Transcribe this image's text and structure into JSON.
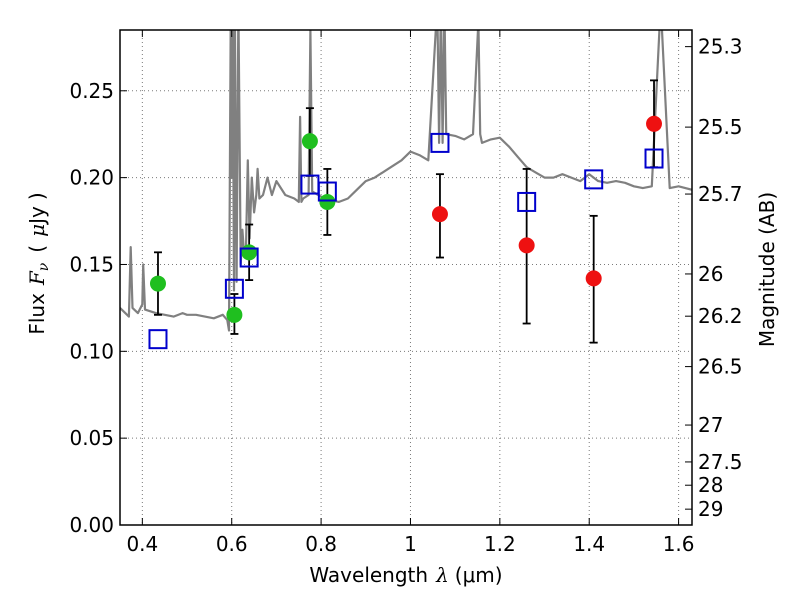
{
  "chart_data": {
    "type": "scatter",
    "xlabel": {
      "prefix": "Wavelength",
      "symbol": "λ",
      "unit": "(μm)"
    },
    "ylabel": {
      "prefix": "Flux",
      "symbol": "F",
      "sub": "ν",
      "unit_open": "(",
      "unit_mu": "μ",
      "unit_rest": "Jy",
      "unit_close": ")"
    },
    "y2label": "Magnitude (AB)",
    "xlim": [
      0.35,
      1.63
    ],
    "ylim": [
      0.0,
      0.285
    ],
    "xticks": [
      0.4,
      0.6,
      0.8,
      1.0,
      1.2,
      1.4,
      1.6
    ],
    "xtick_labels": [
      "0.4",
      "0.6",
      "0.8",
      "1",
      "1.2",
      "1.4",
      "1.6"
    ],
    "yticks": [
      0.0,
      0.05,
      0.1,
      0.15,
      0.2,
      0.25
    ],
    "ytick_labels": [
      "0.00",
      "0.05",
      "0.10",
      "0.15",
      "0.20",
      "0.25"
    ],
    "magnitude_ticks": [
      "25.3",
      "25.5",
      "25.7",
      "26",
      "26.2",
      "26.5",
      "27",
      "27.5",
      "28",
      "29"
    ],
    "grid": true,
    "colors": {
      "spectrum": "#808080",
      "green": "#1fbf1f",
      "red": "#ee1111",
      "model": "#0000cc",
      "errorbar": "#000000",
      "grid": "#7a7a7a"
    },
    "series": [
      {
        "marker": "circle",
        "color": "green",
        "points": [
          {
            "x": 0.435,
            "y": 0.139,
            "lo": 0.121,
            "hi": 0.157
          },
          {
            "x": 0.606,
            "y": 0.121,
            "lo": 0.11,
            "hi": 0.133
          },
          {
            "x": 0.639,
            "y": 0.157,
            "lo": 0.141,
            "hi": 0.173
          },
          {
            "x": 0.775,
            "y": 0.221,
            "lo": 0.201,
            "hi": 0.24
          },
          {
            "x": 0.814,
            "y": 0.186,
            "lo": 0.167,
            "hi": 0.205
          }
        ]
      },
      {
        "marker": "circle",
        "color": "red",
        "points": [
          {
            "x": 1.066,
            "y": 0.179,
            "lo": 0.154,
            "hi": 0.202
          },
          {
            "x": 1.26,
            "y": 0.161,
            "lo": 0.116,
            "hi": 0.205
          },
          {
            "x": 1.41,
            "y": 0.142,
            "lo": 0.105,
            "hi": 0.178
          },
          {
            "x": 1.545,
            "y": 0.231,
            "lo": 0.206,
            "hi": 0.256
          }
        ]
      },
      {
        "marker": "square",
        "color": "model",
        "points": [
          {
            "x": 0.435,
            "y": 0.107
          },
          {
            "x": 0.606,
            "y": 0.136
          },
          {
            "x": 0.639,
            "y": 0.154
          },
          {
            "x": 0.775,
            "y": 0.196
          },
          {
            "x": 0.814,
            "y": 0.192
          },
          {
            "x": 1.066,
            "y": 0.22
          },
          {
            "x": 1.26,
            "y": 0.186
          },
          {
            "x": 1.41,
            "y": 0.199
          },
          {
            "x": 1.545,
            "y": 0.211
          }
        ]
      }
    ],
    "spectrum": {
      "x": [
        0.35,
        0.37,
        0.374,
        0.378,
        0.39,
        0.4,
        0.402,
        0.406,
        0.43,
        0.45,
        0.47,
        0.49,
        0.5,
        0.52,
        0.54,
        0.56,
        0.58,
        0.59,
        0.594,
        0.598,
        0.6,
        0.602,
        0.605,
        0.607,
        0.611,
        0.615,
        0.62,
        0.624,
        0.628,
        0.632,
        0.636,
        0.64,
        0.645,
        0.65,
        0.655,
        0.658,
        0.662,
        0.67,
        0.68,
        0.69,
        0.7,
        0.72,
        0.74,
        0.75,
        0.753,
        0.756,
        0.76,
        0.772,
        0.776,
        0.78,
        0.8,
        0.82,
        0.84,
        0.86,
        0.88,
        0.9,
        0.92,
        0.95,
        0.98,
        1.0,
        1.02,
        1.04,
        1.06,
        1.064,
        1.068,
        1.072,
        1.076,
        1.08,
        1.1,
        1.12,
        1.14,
        1.152,
        1.156,
        1.16,
        1.18,
        1.2,
        1.22,
        1.24,
        1.26,
        1.28,
        1.3,
        1.32,
        1.34,
        1.36,
        1.38,
        1.4,
        1.42,
        1.44,
        1.46,
        1.48,
        1.5,
        1.52,
        1.54,
        1.56,
        1.58,
        1.6,
        1.63
      ],
      "y": [
        0.125,
        0.12,
        0.16,
        0.125,
        0.122,
        0.127,
        0.15,
        0.124,
        0.122,
        0.121,
        0.12,
        0.122,
        0.121,
        0.121,
        0.12,
        0.119,
        0.121,
        0.118,
        0.112,
        0.3,
        0.2,
        0.3,
        0.135,
        0.3,
        0.14,
        0.3,
        0.15,
        0.17,
        0.155,
        0.16,
        0.21,
        0.165,
        0.2,
        0.18,
        0.19,
        0.205,
        0.188,
        0.19,
        0.2,
        0.19,
        0.198,
        0.19,
        0.188,
        0.186,
        0.235,
        0.186,
        0.188,
        0.19,
        0.285,
        0.192,
        0.189,
        0.187,
        0.186,
        0.188,
        0.193,
        0.198,
        0.2,
        0.205,
        0.21,
        0.215,
        0.213,
        0.21,
        0.3,
        0.22,
        0.3,
        0.22,
        0.3,
        0.225,
        0.224,
        0.222,
        0.225,
        0.29,
        0.225,
        0.22,
        0.222,
        0.223,
        0.218,
        0.212,
        0.206,
        0.203,
        0.2,
        0.2,
        0.202,
        0.2,
        0.198,
        0.202,
        0.198,
        0.197,
        0.198,
        0.197,
        0.195,
        0.194,
        0.195,
        0.3,
        0.194,
        0.195,
        0.193
      ]
    }
  }
}
